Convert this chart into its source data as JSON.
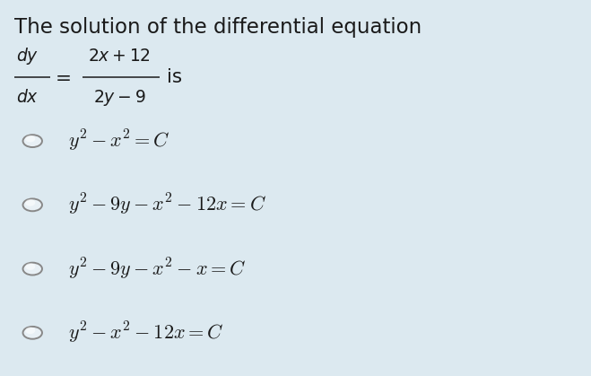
{
  "background_color": "#dce9f0",
  "title": "The solution of the differential equation",
  "options": [
    "$y^2 - x^2 = C$",
    "$y^2 - 9y - x^2 - 12x = C$",
    "$y^2 - 9y - x^2 - x = C$",
    "$y^2 - x^2 - 12x = C$"
  ],
  "text_color": "#1a1a1a",
  "circle_edge_color": "#888888",
  "circle_fill_color": "#e8f0f5",
  "title_fontsize": 16.5,
  "option_fontsize": 16,
  "eq_fontsize": 13.5,
  "figsize": [
    6.59,
    4.19
  ],
  "dpi": 100
}
